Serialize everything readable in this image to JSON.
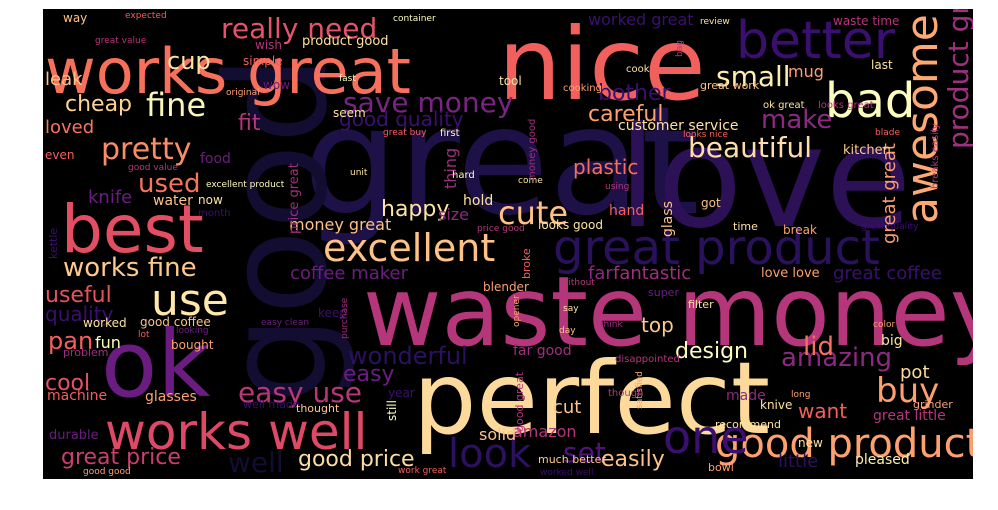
{
  "words": [
    {
      "text": "great",
      "color": "#1d1147"
    },
    {
      "text": "love",
      "color": "#2c1157"
    },
    {
      "text": "good",
      "color": "#120d31"
    },
    {
      "text": "waste money",
      "color": "#b5367a"
    },
    {
      "text": "perfect",
      "color": "#fdda9c"
    },
    {
      "text": "nice",
      "color": "#f1605d"
    },
    {
      "text": "works great",
      "color": "#f7705c"
    },
    {
      "text": "ok",
      "color": "#6a1c81"
    },
    {
      "text": "best",
      "color": "#e34e65"
    },
    {
      "text": "better",
      "color": "#3b0f70"
    },
    {
      "text": "works well",
      "color": "#de4968"
    },
    {
      "text": "great product",
      "color": "#2a115c"
    },
    {
      "text": "good product",
      "color": "#fea16e"
    },
    {
      "text": "excellent",
      "color": "#fec287"
    },
    {
      "text": "awesome",
      "color": "#fea973"
    },
    {
      "text": "bad",
      "color": "#fcfdbf"
    },
    {
      "text": "one",
      "color": "#3b0f70"
    },
    {
      "text": "use",
      "color": "#fee7a8"
    },
    {
      "text": "look",
      "color": "#2c115f"
    },
    {
      "text": "cute",
      "color": "#fec186"
    },
    {
      "text": "fine",
      "color": "#fcf6b8"
    },
    {
      "text": "pretty",
      "color": "#f98e66"
    },
    {
      "text": "really need",
      "color": "#e3536a"
    },
    {
      "text": "save money",
      "color": "#7b2382"
    },
    {
      "text": "small",
      "color": "#feeeae"
    },
    {
      "text": "beautiful",
      "color": "#feddab"
    },
    {
      "text": "used",
      "color": "#f5755c"
    },
    {
      "text": "cup",
      "color": "#fde2a0"
    },
    {
      "text": "buy",
      "color": "#fe9f6d"
    },
    {
      "text": "works fine",
      "color": "#fec98d"
    },
    {
      "text": "easy use",
      "color": "#b73779"
    },
    {
      "text": "great price",
      "color": "#cb3e71"
    },
    {
      "text": "product great",
      "color": "#9f2f7f"
    },
    {
      "text": "amazing",
      "color": "#8c2981"
    },
    {
      "text": "wonderful",
      "color": "#2c115f"
    },
    {
      "text": "make",
      "color": "#8c2981"
    },
    {
      "text": "lid",
      "color": "#f7705c"
    },
    {
      "text": "good price",
      "color": "#fcdda1"
    },
    {
      "text": "easy",
      "color": "#6b1d81"
    },
    {
      "text": "set",
      "color": "#51127c"
    },
    {
      "text": "cool",
      "color": "#e75263"
    },
    {
      "text": "useful",
      "color": "#e65163"
    },
    {
      "text": "pan",
      "color": "#f1605d"
    },
    {
      "text": "happy",
      "color": "#fde4a6"
    },
    {
      "text": "cheap",
      "color": "#fed395"
    },
    {
      "text": "bother",
      "color": "#3b0f70"
    },
    {
      "text": "careful",
      "color": "#fea16e"
    },
    {
      "text": "good quality",
      "color": "#3c0f70"
    },
    {
      "text": "quality",
      "color": "#3b0f70"
    },
    {
      "text": "loved",
      "color": "#f8765c"
    },
    {
      "text": "fit",
      "color": "#b5367a"
    },
    {
      "text": "leak",
      "color": "#fec287"
    },
    {
      "text": "coffee maker",
      "color": "#6b1d81"
    },
    {
      "text": "fantastic",
      "color": "#9f2f7f"
    },
    {
      "text": "far",
      "color": "#8c2981"
    },
    {
      "text": "top",
      "color": "#fec98d"
    },
    {
      "text": "design",
      "color": "#fcfdbf"
    },
    {
      "text": "want",
      "color": "#f1605d"
    },
    {
      "text": "pot",
      "color": "#fdda9c"
    },
    {
      "text": "easily",
      "color": "#fec287"
    },
    {
      "text": "little",
      "color": "#2c115f"
    },
    {
      "text": "pleased",
      "color": "#feeeaf"
    },
    {
      "text": "well",
      "color": "#120d31"
    },
    {
      "text": "amazon",
      "color": "#b5367a"
    },
    {
      "text": "cut",
      "color": "#fec287"
    },
    {
      "text": "great coffee",
      "color": "#3b0f70"
    },
    {
      "text": "great great",
      "color": "#fe9f6d"
    },
    {
      "text": "great little",
      "color": "#b5367a"
    },
    {
      "text": "plastic",
      "color": "#f7705c"
    },
    {
      "text": "knife",
      "color": "#6b1d81"
    },
    {
      "text": "water",
      "color": "#fec287"
    },
    {
      "text": "size",
      "color": "#8c2981"
    },
    {
      "text": "hold",
      "color": "#fde2a0"
    },
    {
      "text": "money great",
      "color": "#fec287"
    },
    {
      "text": "customer service",
      "color": "#fde2a0"
    },
    {
      "text": "kitchen",
      "color": "#fec98d"
    },
    {
      "text": "mug",
      "color": "#fea16e"
    },
    {
      "text": "thing",
      "color": "#9f2f7f"
    },
    {
      "text": "useful item",
      "color": "#3b0f70"
    },
    {
      "text": "fun",
      "color": "#fcfdbf"
    },
    {
      "text": "worked",
      "color": "#fde2a0"
    },
    {
      "text": "good coffee",
      "color": "#fec287"
    },
    {
      "text": "bought",
      "color": "#fea16e"
    },
    {
      "text": "problem",
      "color": "#9f2f7f"
    },
    {
      "text": "machine",
      "color": "#f1605d"
    },
    {
      "text": "glasses",
      "color": "#fea16e"
    },
    {
      "text": "well made",
      "color": "#3b0f70"
    },
    {
      "text": "thought",
      "color": "#fec98d"
    },
    {
      "text": "durable",
      "color": "#6b1d81"
    },
    {
      "text": "solid",
      "color": "#fec287"
    },
    {
      "text": "still",
      "color": "#fcfdbf"
    },
    {
      "text": "good great",
      "color": "#b5367a"
    },
    {
      "text": "recommend",
      "color": "#fde2a0"
    },
    {
      "text": "much better",
      "color": "#fec98d"
    },
    {
      "text": "made",
      "color": "#8c2981"
    },
    {
      "text": "knive",
      "color": "#fde2a0"
    },
    {
      "text": "grinder",
      "color": "#fea16e"
    },
    {
      "text": "bowl",
      "color": "#fea16e"
    },
    {
      "text": "blender",
      "color": "#fea16e"
    },
    {
      "text": "filter",
      "color": "#fde2a0"
    },
    {
      "text": "super",
      "color": "#6b1d81"
    },
    {
      "text": "love love",
      "color": "#fea16e"
    },
    {
      "text": "break",
      "color": "#fea16e"
    },
    {
      "text": "time",
      "color": "#fde2a0"
    },
    {
      "text": "got",
      "color": "#fec287"
    },
    {
      "text": "hand",
      "color": "#f1605d"
    },
    {
      "text": "glass",
      "color": "#fec287"
    },
    {
      "text": "looks good",
      "color": "#fde2a0"
    },
    {
      "text": "far good",
      "color": "#9f2f7f"
    },
    {
      "text": "price great",
      "color": "#9f2f7f"
    },
    {
      "text": "excellent product",
      "color": "#fcfdbf"
    },
    {
      "text": "good value",
      "color": "#b5367a"
    },
    {
      "text": "food",
      "color": "#6b1d81"
    },
    {
      "text": "even",
      "color": "#f1605d"
    },
    {
      "text": "seem",
      "color": "#fde2a0"
    },
    {
      "text": "first",
      "color": "#fcfdbf"
    },
    {
      "text": "great buy",
      "color": "#f1605d"
    },
    {
      "text": "unit",
      "color": "#fde2a0"
    },
    {
      "text": "hard",
      "color": "#fcfdbf"
    },
    {
      "text": "using",
      "color": "#b5367a"
    },
    {
      "text": "come",
      "color": "#fde2a0"
    },
    {
      "text": "now",
      "color": "#fde2a0"
    },
    {
      "text": "kettle",
      "color": "#3b0f70"
    },
    {
      "text": "month",
      "color": "#3b0f70"
    },
    {
      "text": "way",
      "color": "#fec287"
    },
    {
      "text": "expected",
      "color": "#f1605d"
    },
    {
      "text": "container",
      "color": "#fcfdbf"
    },
    {
      "text": "review",
      "color": "#fde2a0"
    },
    {
      "text": "waste time",
      "color": "#b5367a"
    },
    {
      "text": "worked great",
      "color": "#3b0f70"
    },
    {
      "text": "great value",
      "color": "#b5367a"
    },
    {
      "text": "product good",
      "color": "#fde2a0"
    },
    {
      "text": "wish",
      "color": "#b5367a"
    },
    {
      "text": "simple",
      "color": "#f1605d"
    },
    {
      "text": "original",
      "color": "#fea16e"
    },
    {
      "text": "wow",
      "color": "#6b1d81"
    },
    {
      "text": "fast",
      "color": "#fcfdbf"
    },
    {
      "text": "tool",
      "color": "#fde2a0"
    },
    {
      "text": "cook",
      "color": "#fde2a0"
    },
    {
      "text": "cooking",
      "color": "#fea16e"
    },
    {
      "text": "great work",
      "color": "#fec287"
    },
    {
      "text": "last",
      "color": "#fde2a0"
    },
    {
      "text": "ok great",
      "color": "#fde2a0"
    },
    {
      "text": "looks great",
      "color": "#b5367a"
    },
    {
      "text": "looks nice",
      "color": "#f1605d"
    },
    {
      "text": "blade",
      "color": "#f1605d"
    },
    {
      "text": "breaks easily",
      "color": "#b5367a"
    },
    {
      "text": "great quality",
      "color": "#3b0f70"
    },
    {
      "text": "price good",
      "color": "#b5367a"
    },
    {
      "text": "broke",
      "color": "#f1605d"
    },
    {
      "text": "without",
      "color": "#b5367a"
    },
    {
      "text": "say",
      "color": "#fde2a0"
    },
    {
      "text": "think",
      "color": "#9f2f7f"
    },
    {
      "text": "color",
      "color": "#fea16e"
    },
    {
      "text": "keep",
      "color": "#3b0f70"
    },
    {
      "text": "opener",
      "color": "#fea16e"
    },
    {
      "text": "purchase",
      "color": "#9f2f7f"
    },
    {
      "text": "easy clean",
      "color": "#6b1d81"
    },
    {
      "text": "looking",
      "color": "#6b1d81"
    },
    {
      "text": "lot",
      "color": "#f1605d"
    },
    {
      "text": "day",
      "color": "#fec287"
    },
    {
      "text": "disappointed",
      "color": "#b5367a"
    },
    {
      "text": "satisfied",
      "color": "#fea16e"
    },
    {
      "text": "year",
      "color": "#3b0f70"
    },
    {
      "text": "long",
      "color": "#fea16e"
    },
    {
      "text": "new",
      "color": "#fde2a0"
    },
    {
      "text": "big",
      "color": "#fde2a0"
    },
    {
      "text": "though",
      "color": "#b5367a"
    },
    {
      "text": "bag",
      "color": "#b5367a"
    },
    {
      "text": "money good",
      "color": "#9f2f7f"
    },
    {
      "text": "worked well",
      "color": "#3b0f70"
    },
    {
      "text": "work great",
      "color": "#f1605d"
    },
    {
      "text": "good good",
      "color": "#fea16e"
    },
    {
      "text": "need",
      "color": "#3b0f70"
    },
    {
      "text": "go",
      "color": "#fde2a0"
    },
    {
      "text": "ever",
      "color": "#6b1d81"
    }
  ]
}
